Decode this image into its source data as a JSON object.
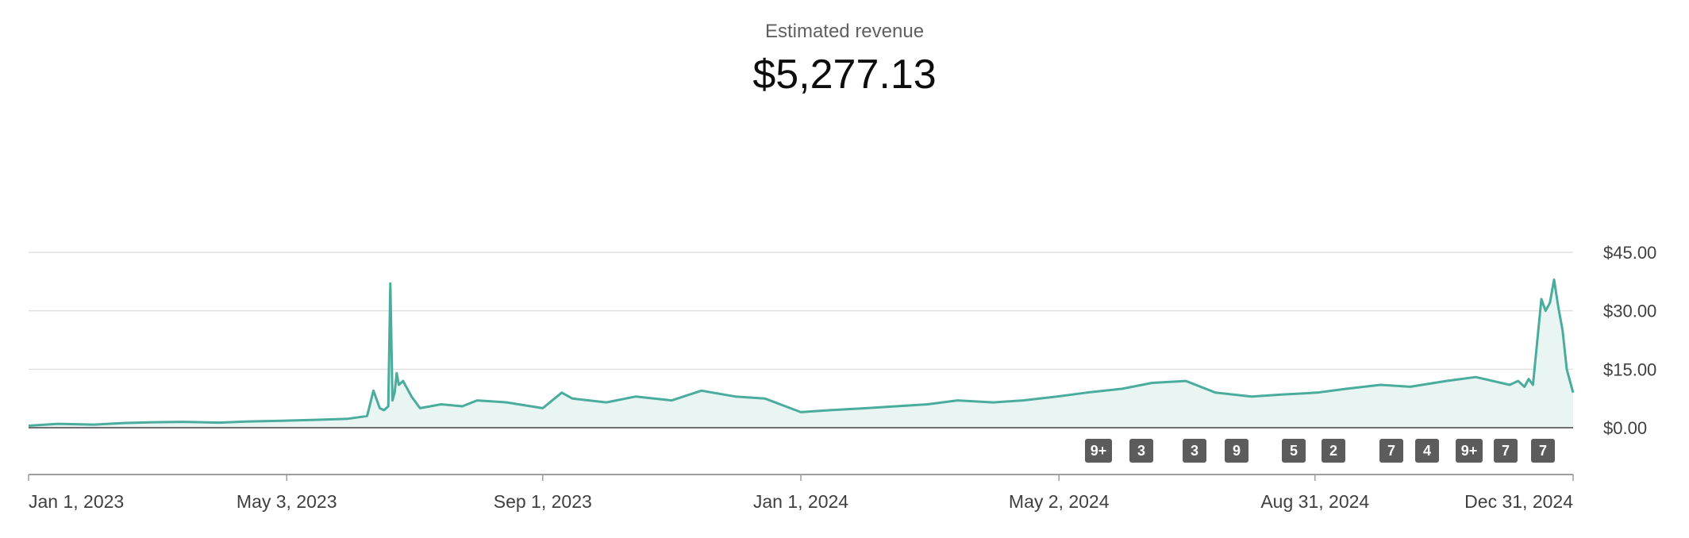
{
  "header": {
    "metric_label": "Estimated revenue",
    "metric_value": "$5,277.13"
  },
  "colors": {
    "line": "#4aac9c",
    "fill": "#e8f5f2",
    "grid": "#e0e0e0",
    "baseline": "#707070",
    "marker_bg": "#5c5c5c"
  },
  "chart_data": {
    "type": "area",
    "title": "Estimated revenue",
    "xlabel": "",
    "ylabel": "",
    "ylim": [
      0,
      45
    ],
    "yticks": [
      0,
      15,
      30,
      45
    ],
    "ytick_labels": [
      "$0.00",
      "$15.00",
      "$30.00",
      "$45.00"
    ],
    "xlim": [
      "2023-01-01",
      "2024-12-31"
    ],
    "xticks": [
      "2023-01-01",
      "2023-05-03",
      "2023-09-01",
      "2024-01-01",
      "2024-05-02",
      "2024-08-31",
      "2024-12-31"
    ],
    "xtick_labels": [
      "Jan 1, 2023",
      "May 3, 2023",
      "Sep 1, 2023",
      "Jan 1, 2024",
      "May 2, 2024",
      "Aug 31, 2024",
      "Dec 31, 2024"
    ],
    "grid": true,
    "series": [
      {
        "x": [
          "2023-01-01",
          "2023-01-15",
          "2023-02-01",
          "2023-02-15",
          "2023-03-01",
          "2023-03-15",
          "2023-04-01",
          "2023-04-15",
          "2023-05-01",
          "2023-05-15",
          "2023-06-01",
          "2023-06-10",
          "2023-06-13",
          "2023-06-16",
          "2023-06-18",
          "2023-06-20",
          "2023-06-21",
          "2023-06-22",
          "2023-06-23",
          "2023-06-24",
          "2023-06-25",
          "2023-06-27",
          "2023-07-01",
          "2023-07-05",
          "2023-07-15",
          "2023-07-25",
          "2023-08-01",
          "2023-08-15",
          "2023-09-01",
          "2023-09-10",
          "2023-09-15",
          "2023-10-01",
          "2023-10-15",
          "2023-11-01",
          "2023-11-15",
          "2023-12-01",
          "2023-12-15",
          "2024-01-01",
          "2024-01-15",
          "2024-02-01",
          "2024-02-15",
          "2024-03-01",
          "2024-03-15",
          "2024-04-01",
          "2024-04-15",
          "2024-05-01",
          "2024-05-15",
          "2024-06-01",
          "2024-06-15",
          "2024-07-01",
          "2024-07-15",
          "2024-08-01",
          "2024-08-15",
          "2024-09-01",
          "2024-09-15",
          "2024-10-01",
          "2024-10-15",
          "2024-11-01",
          "2024-11-15",
          "2024-12-01",
          "2024-12-05",
          "2024-12-08",
          "2024-12-10",
          "2024-12-12",
          "2024-12-14",
          "2024-12-16",
          "2024-12-18",
          "2024-12-20",
          "2024-12-22",
          "2024-12-24",
          "2024-12-26",
          "2024-12-28",
          "2024-12-31"
        ],
        "values": [
          0.5,
          1.0,
          0.8,
          1.2,
          1.4,
          1.5,
          1.3,
          1.6,
          1.8,
          2.0,
          2.3,
          3.0,
          9.5,
          5.0,
          4.5,
          5.5,
          37.0,
          7.0,
          9.0,
          14.0,
          11.0,
          12.0,
          8.0,
          5.0,
          6.0,
          5.5,
          7.0,
          6.5,
          5.0,
          9.0,
          7.5,
          6.5,
          8.0,
          7.0,
          9.5,
          8.0,
          7.5,
          4.0,
          4.5,
          5.0,
          5.5,
          6.0,
          7.0,
          6.5,
          7.0,
          8.0,
          9.0,
          10.0,
          11.5,
          12.0,
          9.0,
          8.0,
          8.5,
          9.0,
          10.0,
          11.0,
          10.5,
          12.0,
          13.0,
          11.0,
          12.0,
          10.5,
          12.5,
          11.0,
          22.0,
          33.0,
          30.0,
          32.0,
          38.0,
          31.0,
          25.0,
          15.0,
          9.0
        ]
      }
    ],
    "markers": [
      {
        "date": "2024-05-11",
        "label": "9+"
      },
      {
        "date": "2024-06-09",
        "label": "3"
      },
      {
        "date": "2024-07-15",
        "label": "3"
      },
      {
        "date": "2024-08-12",
        "label": "9"
      },
      {
        "date": "2024-09-19",
        "label": "5"
      },
      {
        "date": "2024-10-16",
        "label": "2"
      },
      {
        "date": "2024-11-24",
        "label": "7"
      },
      {
        "date": "2024-12-18",
        "label": "4"
      },
      {
        "date": "2025-01-15",
        "label": "9+"
      },
      {
        "date": "2025-02-08",
        "label": "7"
      },
      {
        "date": "2025-03-05",
        "label": "7"
      }
    ]
  }
}
